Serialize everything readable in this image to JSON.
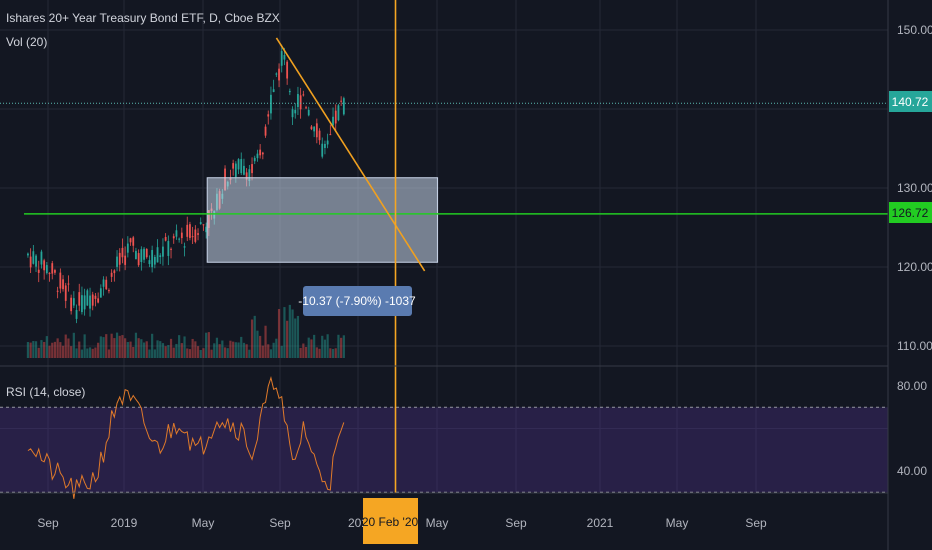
{
  "header": {
    "symbol_title": "Ishares 20+ Year Treasury Bond ETF, D, Cboe BZX",
    "volume_label": "Vol (20)",
    "rsi_label": "RSI (14, close)"
  },
  "colors": {
    "background": "#131722",
    "grid": "#242936",
    "axis_text": "#b2b5be",
    "up": "#26a69a",
    "down": "#ef5350",
    "trendline": "#f0a020",
    "vertical_marker": "#f5a623",
    "support_line": "#22cc22",
    "price_line": "#5bb8b0",
    "price_badge": "#26a69a",
    "support_badge": "#22cc22",
    "range_box": "rgba(200,215,235,0.55)",
    "measure_badge": "#5a7bb0",
    "rsi_line": "#e07a2a",
    "rsi_band": "rgba(80,50,140,0.35)"
  },
  "badges": {
    "last_price": "140.72",
    "support_price": "126.72",
    "measure": "-10.37 (-7.90%) -1037",
    "date_marker": "20 Feb '20"
  },
  "chart_data": [
    {
      "type": "candlestick",
      "title": "Ishares 20+ Year Treasury Bond ETF, D, Cboe BZX",
      "ylim": [
        108,
        152
      ],
      "y_ticks": [
        "150.00",
        "130.00",
        "120.00",
        "110.00"
      ],
      "x_ticks": [
        "Sep",
        "2019",
        "May",
        "Sep",
        "202",
        "May",
        "Sep",
        "2021",
        "May",
        "Sep"
      ],
      "last_price": 140.72,
      "horizontal_line": 126.72,
      "trendline": {
        "from": [
          "2019-08-20",
          149
        ],
        "to": [
          "2020-04-05",
          119.5
        ]
      },
      "range_box": {
        "x": [
          "2019-05-05",
          "2020-04-25"
        ],
        "y": [
          120.6,
          131.3
        ]
      },
      "vertical_marker": "2020-02-20",
      "measure_label": "-10.37 (-7.90%) -1037",
      "series": [
        {
          "name": "Vol (20)",
          "type": "volume",
          "trend_points": [
            [
              "2018-08-01",
              121.5
            ],
            [
              "2018-09-01",
              120
            ],
            [
              "2018-10-15",
              115
            ],
            [
              "2018-11-01",
              116
            ],
            [
              "2018-12-01",
              118
            ],
            [
              "2019-01-05",
              122.5
            ],
            [
              "2019-02-01",
              121
            ],
            [
              "2019-03-15",
              123
            ],
            [
              "2019-04-15",
              124.5
            ],
            [
              "2019-05-15",
              126.5
            ],
            [
              "2019-06-01",
              131
            ],
            [
              "2019-06-30",
              133
            ],
            [
              "2019-07-15",
              132
            ],
            [
              "2019-08-01",
              135
            ],
            [
              "2019-08-15",
              143
            ],
            [
              "2019-09-01",
              147
            ],
            [
              "2019-09-15",
              140
            ],
            [
              "2019-10-01",
              142
            ],
            [
              "2019-10-20",
              137
            ],
            [
              "2019-11-05",
              134
            ],
            [
              "2019-11-20",
              139
            ],
            [
              "2019-12-05",
              141
            ]
          ]
        }
      ]
    },
    {
      "type": "line",
      "title": "RSI (14, close)",
      "ylim": [
        20,
        94
      ],
      "y_ticks": [
        "80.00",
        "40.00"
      ],
      "band": [
        30,
        70
      ],
      "series": [
        {
          "name": "RSI",
          "trend_points": [
            [
              "2018-08-01",
              55
            ],
            [
              "2018-09-01",
              42
            ],
            [
              "2018-10-15",
              30
            ],
            [
              "2018-11-15",
              38
            ],
            [
              "2018-12-20",
              76
            ],
            [
              "2019-01-15",
              70
            ],
            [
              "2019-02-15",
              50
            ],
            [
              "2019-03-25",
              65
            ],
            [
              "2019-04-20",
              48
            ],
            [
              "2019-05-20",
              66
            ],
            [
              "2019-06-25",
              60
            ],
            [
              "2019-07-15",
              48
            ],
            [
              "2019-08-01",
              70
            ],
            [
              "2019-08-20",
              85
            ],
            [
              "2019-09-15",
              40
            ],
            [
              "2019-10-01",
              62
            ],
            [
              "2019-10-20",
              42
            ],
            [
              "2019-11-10",
              35
            ],
            [
              "2019-11-25",
              55
            ],
            [
              "2019-12-05",
              60
            ]
          ]
        }
      ]
    }
  ]
}
